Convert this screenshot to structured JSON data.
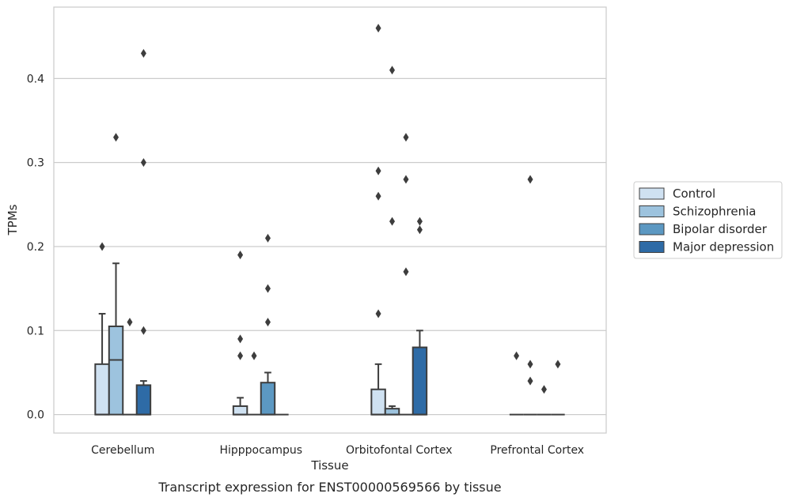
{
  "caption": "Transcript expression for ENST00000569566 by tissue",
  "chart_data": {
    "type": "box",
    "xlabel": "Tissue",
    "ylabel": "TPMs",
    "ylim": [
      -0.022,
      0.485
    ],
    "yticks": [
      0.0,
      0.1,
      0.2,
      0.3,
      0.4
    ],
    "ytick_labels": [
      "0.0",
      "0.1",
      "0.2",
      "0.3",
      "0.4"
    ],
    "grid": "horizontal",
    "legend_position": "right",
    "categories": [
      "Cerebellum",
      "Hipppocampus",
      "Orbitofontal Cortex",
      "Prefrontal Cortex"
    ],
    "series": [
      {
        "name": "Control",
        "color": "#cfe1f1",
        "boxes": [
          {
            "q1": 0.0,
            "median": 0.0,
            "q3": 0.06,
            "whisker_low": 0.0,
            "whisker_high": 0.12,
            "outliers": [
              0.2
            ]
          },
          {
            "q1": 0.0,
            "median": 0.0,
            "q3": 0.01,
            "whisker_low": 0.0,
            "whisker_high": 0.02,
            "outliers": [
              0.07,
              0.09,
              0.19
            ]
          },
          {
            "q1": 0.0,
            "median": 0.0,
            "q3": 0.03,
            "whisker_low": 0.0,
            "whisker_high": 0.06,
            "outliers": [
              0.12,
              0.26,
              0.29,
              0.46
            ]
          },
          {
            "q1": 0.0,
            "median": 0.0,
            "q3": 0.0,
            "whisker_low": 0.0,
            "whisker_high": 0.0,
            "outliers": [
              0.07
            ]
          }
        ]
      },
      {
        "name": "Schizophrenia",
        "color": "#9dc3de",
        "boxes": [
          {
            "q1": 0.0,
            "median": 0.065,
            "q3": 0.105,
            "whisker_low": 0.0,
            "whisker_high": 0.18,
            "outliers": [
              0.33
            ]
          },
          {
            "q1": 0.0,
            "median": 0.0,
            "q3": 0.0,
            "whisker_low": 0.0,
            "whisker_high": 0.0,
            "outliers": [
              0.07
            ]
          },
          {
            "q1": 0.0,
            "median": 0.0,
            "q3": 0.007,
            "whisker_low": 0.0,
            "whisker_high": 0.01,
            "outliers": [
              0.23,
              0.41
            ]
          },
          {
            "q1": 0.0,
            "median": 0.0,
            "q3": 0.0,
            "whisker_low": 0.0,
            "whisker_high": 0.0,
            "outliers": [
              0.04,
              0.06,
              0.28
            ]
          }
        ]
      },
      {
        "name": "Bipolar disorder",
        "color": "#5c98c2",
        "boxes": [
          {
            "q1": 0.0,
            "median": 0.0,
            "q3": 0.0,
            "whisker_low": 0.0,
            "whisker_high": 0.0,
            "outliers": [
              0.11
            ]
          },
          {
            "q1": 0.0,
            "median": 0.0,
            "q3": 0.038,
            "whisker_low": 0.0,
            "whisker_high": 0.05,
            "outliers": [
              0.11,
              0.15,
              0.21
            ]
          },
          {
            "q1": 0.0,
            "median": 0.0,
            "q3": 0.0,
            "whisker_low": 0.0,
            "whisker_high": 0.0,
            "outliers": [
              0.17,
              0.28,
              0.33
            ]
          },
          {
            "q1": 0.0,
            "median": 0.0,
            "q3": 0.0,
            "whisker_low": 0.0,
            "whisker_high": 0.0,
            "outliers": [
              0.03
            ]
          }
        ]
      },
      {
        "name": "Major depression",
        "color": "#2e6ba6",
        "boxes": [
          {
            "q1": 0.0,
            "median": 0.0,
            "q3": 0.035,
            "whisker_low": 0.0,
            "whisker_high": 0.04,
            "outliers": [
              0.1,
              0.3,
              0.43
            ]
          },
          {
            "q1": 0.0,
            "median": 0.0,
            "q3": 0.0,
            "whisker_low": 0.0,
            "whisker_high": 0.0,
            "outliers": []
          },
          {
            "q1": 0.0,
            "median": 0.0,
            "q3": 0.08,
            "whisker_low": 0.0,
            "whisker_high": 0.1,
            "outliers": [
              0.22,
              0.23
            ]
          },
          {
            "q1": 0.0,
            "median": 0.0,
            "q3": 0.0,
            "whisker_low": 0.0,
            "whisker_high": 0.0,
            "outliers": [
              0.06
            ]
          }
        ]
      }
    ]
  }
}
